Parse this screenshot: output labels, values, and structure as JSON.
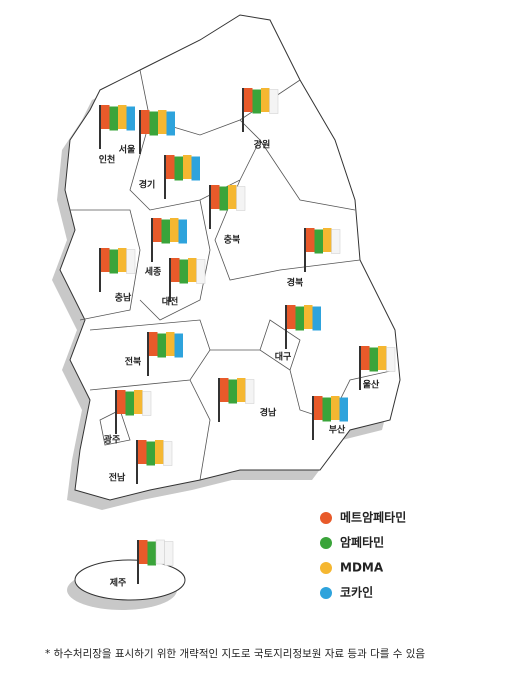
{
  "legend": [
    {
      "label": "메트암페타민",
      "color": "#e85a2a"
    },
    {
      "label": "암페타민",
      "color": "#3aa43a"
    },
    {
      "label": "MDMA",
      "color": "#f5b731"
    },
    {
      "label": "코카인",
      "color": "#2ea3dc"
    }
  ],
  "regions": [
    {
      "label": "인천",
      "detected": [
        true,
        true,
        true,
        true
      ]
    },
    {
      "label": "서울",
      "detected": [
        true,
        true,
        true,
        true
      ]
    },
    {
      "label": "강원",
      "detected": [
        true,
        true,
        true,
        false
      ]
    },
    {
      "label": "경기",
      "detected": [
        true,
        true,
        true,
        true
      ]
    },
    {
      "label": "충북",
      "detected": [
        true,
        true,
        true,
        false
      ]
    },
    {
      "label": "세종",
      "detected": [
        true,
        true,
        true,
        true
      ]
    },
    {
      "label": "대전",
      "detected": [
        true,
        true,
        true,
        false
      ]
    },
    {
      "label": "충남",
      "detected": [
        true,
        true,
        true,
        false
      ]
    },
    {
      "label": "경북",
      "detected": [
        true,
        true,
        true,
        false
      ]
    },
    {
      "label": "전북",
      "detected": [
        true,
        true,
        true,
        true
      ]
    },
    {
      "label": "대구",
      "detected": [
        true,
        true,
        true,
        true
      ]
    },
    {
      "label": "울산",
      "detected": [
        true,
        true,
        true,
        false
      ]
    },
    {
      "label": "경남",
      "detected": [
        true,
        true,
        true,
        false
      ]
    },
    {
      "label": "광주",
      "detected": [
        true,
        true,
        true,
        false
      ]
    },
    {
      "label": "부산",
      "detected": [
        true,
        true,
        true,
        true
      ]
    },
    {
      "label": "전남",
      "detected": [
        true,
        true,
        true,
        false
      ]
    },
    {
      "label": "제주",
      "detected": [
        true,
        true,
        false,
        false
      ]
    }
  ],
  "footnote": "* 하수처리장을 표시하기 위한 개략적인 지도로 국토지리정보원 자료 등과 다를 수 있음"
}
